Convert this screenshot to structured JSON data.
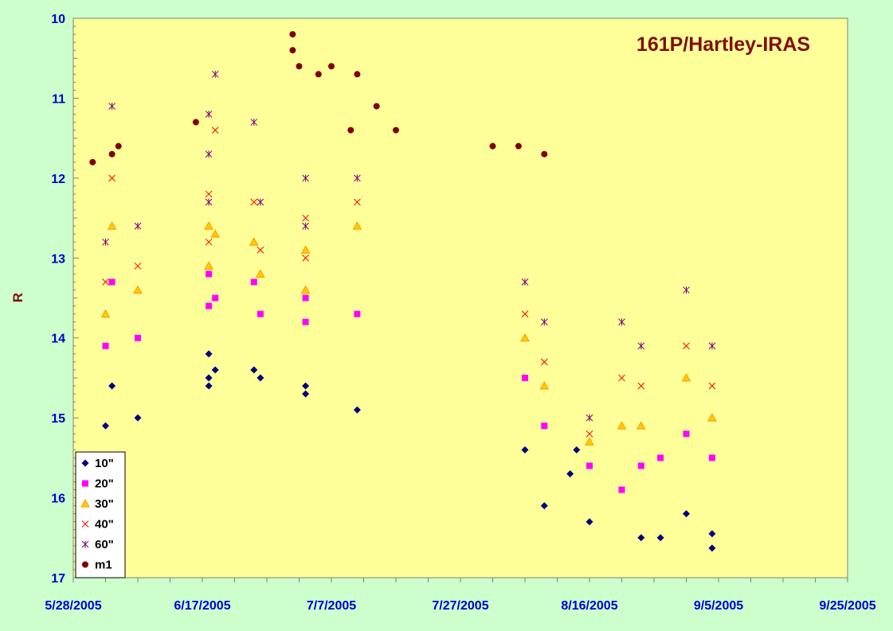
{
  "chart_data": {
    "type": "scatter",
    "title": "161P/Hartley-IRAS",
    "xlabel": "",
    "ylabel": "R",
    "y_inverted": true,
    "ylim": [
      10,
      17
    ],
    "xlim": [
      "2005-05-28",
      "2005-09-25"
    ],
    "x_tick_labels": [
      "5/28/2005",
      "6/17/2005",
      "7/7/2005",
      "7/27/2005",
      "8/16/2005",
      "9/5/2005",
      "9/25/2005"
    ],
    "y_tick_labels": [
      "10",
      "11",
      "12",
      "13",
      "14",
      "15",
      "16",
      "17"
    ],
    "grid": false,
    "legend_position": "bottom-left",
    "colors": {
      "plot_background": "#ffff99",
      "outer_background": "#ccffcc",
      "tick_labels": "#0000cc",
      "title": "#7f0f0f"
    },
    "series": [
      {
        "name": "10\"",
        "marker": "diamond",
        "color": "#000080",
        "points": [
          [
            "2005-06-02",
            15.1
          ],
          [
            "2005-06-03",
            14.6
          ],
          [
            "2005-06-07",
            15.0
          ],
          [
            "2005-06-18",
            14.2
          ],
          [
            "2005-06-18",
            14.5
          ],
          [
            "2005-06-18",
            14.6
          ],
          [
            "2005-06-19",
            14.4
          ],
          [
            "2005-06-25",
            14.4
          ],
          [
            "2005-06-26",
            14.5
          ],
          [
            "2005-07-03",
            14.6
          ],
          [
            "2005-07-03",
            14.7
          ],
          [
            "2005-07-11",
            14.9
          ],
          [
            "2005-08-06",
            15.4
          ],
          [
            "2005-08-09",
            16.1
          ],
          [
            "2005-08-13",
            15.7
          ],
          [
            "2005-08-14",
            15.4
          ],
          [
            "2005-08-16",
            16.3
          ],
          [
            "2005-08-24",
            16.5
          ],
          [
            "2005-08-27",
            16.5
          ],
          [
            "2005-08-31",
            16.2
          ],
          [
            "2005-09-04",
            16.45
          ],
          [
            "2005-09-04",
            16.63
          ]
        ]
      },
      {
        "name": "20\"",
        "marker": "square",
        "color": "#ff00ff",
        "points": [
          [
            "2005-06-02",
            14.1
          ],
          [
            "2005-06-03",
            13.3
          ],
          [
            "2005-06-07",
            14.0
          ],
          [
            "2005-06-18",
            13.2
          ],
          [
            "2005-06-18",
            13.6
          ],
          [
            "2005-06-19",
            13.5
          ],
          [
            "2005-06-25",
            13.3
          ],
          [
            "2005-06-26",
            13.7
          ],
          [
            "2005-07-03",
            13.5
          ],
          [
            "2005-07-03",
            13.8
          ],
          [
            "2005-07-11",
            13.7
          ],
          [
            "2005-08-06",
            14.5
          ],
          [
            "2005-08-09",
            15.1
          ],
          [
            "2005-08-16",
            15.6
          ],
          [
            "2005-08-21",
            15.9
          ],
          [
            "2005-08-24",
            15.6
          ],
          [
            "2005-08-27",
            15.5
          ],
          [
            "2005-08-31",
            15.2
          ],
          [
            "2005-09-04",
            15.5
          ]
        ]
      },
      {
        "name": "30\"",
        "marker": "triangle",
        "color": "#ff9900",
        "points": [
          [
            "2005-06-02",
            13.7
          ],
          [
            "2005-06-03",
            12.6
          ],
          [
            "2005-06-07",
            13.4
          ],
          [
            "2005-06-18",
            12.6
          ],
          [
            "2005-06-18",
            13.1
          ],
          [
            "2005-06-19",
            12.7
          ],
          [
            "2005-06-25",
            12.8
          ],
          [
            "2005-06-26",
            13.2
          ],
          [
            "2005-07-03",
            12.9
          ],
          [
            "2005-07-03",
            13.4
          ],
          [
            "2005-07-11",
            12.6
          ],
          [
            "2005-08-06",
            14.0
          ],
          [
            "2005-08-09",
            14.6
          ],
          [
            "2005-08-16",
            15.3
          ],
          [
            "2005-08-21",
            15.1
          ],
          [
            "2005-08-24",
            15.1
          ],
          [
            "2005-08-31",
            14.5
          ],
          [
            "2005-09-04",
            15.0
          ]
        ]
      },
      {
        "name": "40\"",
        "marker": "x",
        "color": "#ff0000",
        "points": [
          [
            "2005-06-02",
            13.3
          ],
          [
            "2005-06-03",
            12.0
          ],
          [
            "2005-06-07",
            13.1
          ],
          [
            "2005-06-18",
            12.2
          ],
          [
            "2005-06-18",
            12.8
          ],
          [
            "2005-06-19",
            11.4
          ],
          [
            "2005-06-25",
            12.3
          ],
          [
            "2005-06-26",
            12.9
          ],
          [
            "2005-07-03",
            12.5
          ],
          [
            "2005-07-03",
            13.0
          ],
          [
            "2005-07-11",
            12.3
          ],
          [
            "2005-08-06",
            13.7
          ],
          [
            "2005-08-09",
            14.3
          ],
          [
            "2005-08-16",
            15.2
          ],
          [
            "2005-08-21",
            14.5
          ],
          [
            "2005-08-24",
            14.6
          ],
          [
            "2005-08-31",
            14.1
          ],
          [
            "2005-09-04",
            14.6
          ]
        ]
      },
      {
        "name": "60\"",
        "marker": "star",
        "color": "#800080",
        "points": [
          [
            "2005-06-02",
            12.8
          ],
          [
            "2005-06-03",
            11.1
          ],
          [
            "2005-06-07",
            12.6
          ],
          [
            "2005-06-18",
            11.2
          ],
          [
            "2005-06-18",
            11.7
          ],
          [
            "2005-06-18",
            12.3
          ],
          [
            "2005-06-19",
            10.7
          ],
          [
            "2005-06-25",
            11.3
          ],
          [
            "2005-06-26",
            12.3
          ],
          [
            "2005-07-03",
            12.0
          ],
          [
            "2005-07-03",
            12.6
          ],
          [
            "2005-07-11",
            12.0
          ],
          [
            "2005-08-06",
            13.3
          ],
          [
            "2005-08-09",
            13.8
          ],
          [
            "2005-08-16",
            15.0
          ],
          [
            "2005-08-21",
            13.8
          ],
          [
            "2005-08-24",
            14.1
          ],
          [
            "2005-08-31",
            13.4
          ],
          [
            "2005-09-04",
            14.1
          ]
        ]
      },
      {
        "name": "m1",
        "marker": "circle",
        "color": "#800000",
        "points": [
          [
            "2005-05-31",
            11.8
          ],
          [
            "2005-06-03",
            11.7
          ],
          [
            "2005-06-04",
            11.6
          ],
          [
            "2005-06-16",
            11.3
          ],
          [
            "2005-07-01",
            10.2
          ],
          [
            "2005-07-01",
            10.4
          ],
          [
            "2005-07-02",
            10.6
          ],
          [
            "2005-07-05",
            10.7
          ],
          [
            "2005-07-07",
            10.6
          ],
          [
            "2005-07-10",
            11.4
          ],
          [
            "2005-07-11",
            10.7
          ],
          [
            "2005-07-14",
            11.1
          ],
          [
            "2005-07-17",
            11.4
          ],
          [
            "2005-08-01",
            11.6
          ],
          [
            "2005-08-05",
            11.6
          ],
          [
            "2005-08-09",
            11.7
          ]
        ]
      }
    ]
  }
}
